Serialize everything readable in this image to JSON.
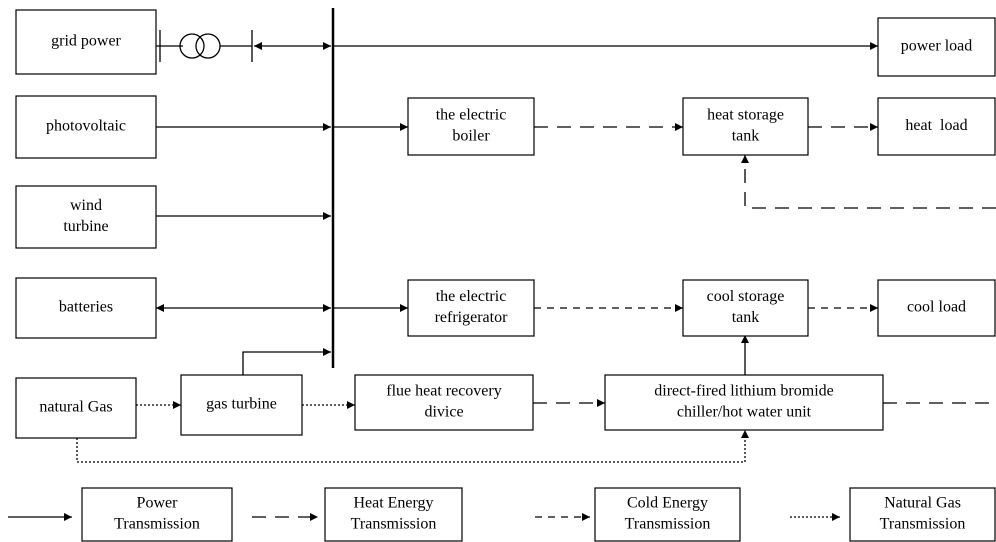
{
  "nodes": [
    {
      "lines": [
        "grid power"
      ]
    },
    {
      "lines": [
        "photovoltaic"
      ]
    },
    {
      "lines": [
        "wind",
        "turbine"
      ]
    },
    {
      "lines": [
        "batteries"
      ]
    },
    {
      "lines": [
        "natural Gas"
      ]
    },
    {
      "lines": [
        "gas turbine"
      ]
    },
    {
      "lines": [
        "flue heat recovery",
        "divice"
      ]
    },
    {
      "lines": [
        "direct-fired lithium bromide",
        "chiller/hot water unit"
      ]
    },
    {
      "lines": [
        "the electric",
        "boiler"
      ]
    },
    {
      "lines": [
        "heat storage",
        "tank"
      ]
    },
    {
      "lines": [
        "the electric",
        "refrigerator"
      ]
    },
    {
      "lines": [
        "cool storage",
        "tank"
      ]
    },
    {
      "lines": [
        "power load"
      ]
    },
    {
      "lines": [
        "heat  load"
      ]
    },
    {
      "lines": [
        "cool load"
      ]
    }
  ],
  "legend": [
    {
      "lines": [
        "Power",
        "Transmission"
      ]
    },
    {
      "lines": [
        "Heat Energy",
        "Transmission"
      ]
    },
    {
      "lines": [
        "Cold Energy",
        "Transmission"
      ]
    },
    {
      "lines": [
        "Natural Gas",
        "Transmission"
      ]
    }
  ]
}
